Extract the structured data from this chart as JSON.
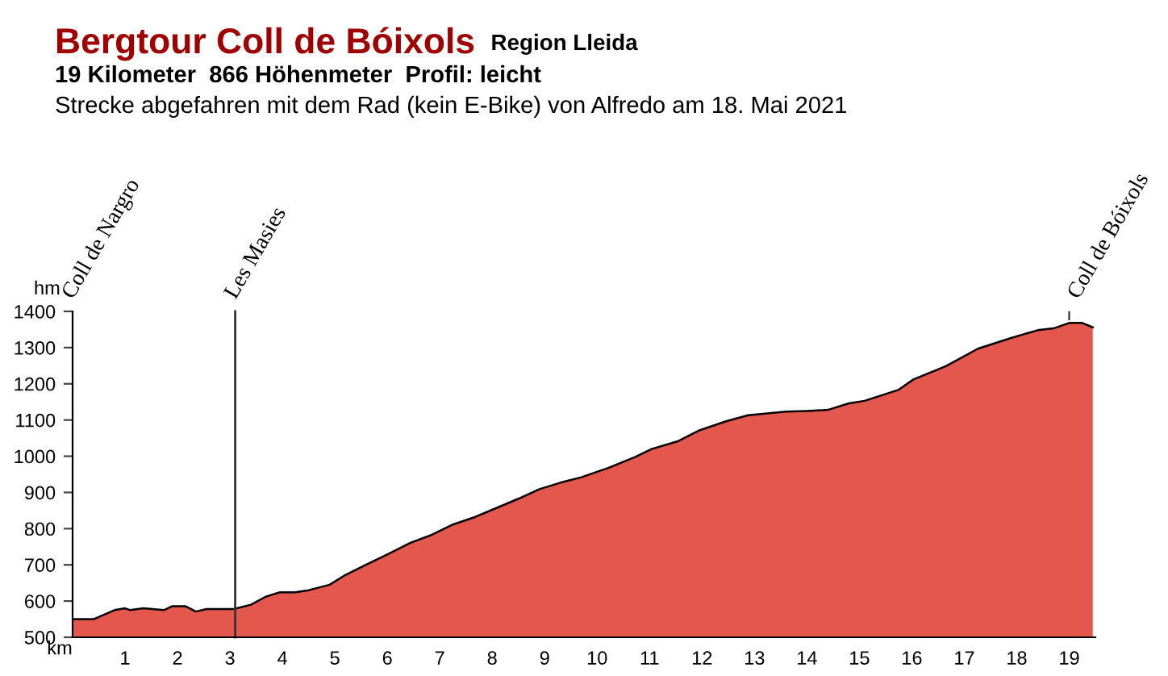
{
  "chart_data": {
    "type": "area",
    "title": "Bergtour Coll de Bóixols",
    "subtitle": "Region Lleida",
    "annotations": [
      "19 Kilometer  866 Höhenmeter  Profil: leicht",
      "Strecke abgefahren mit dem Rad (kein E-Bike) von Alfredo am 18. Mai 2021",
      "Coll de Nargro",
      {
        "text": "Coll de Bóixols",
        "x": 19.0,
        "y": 1368
      }
    ],
    "xlabel": "km",
    "ylabel": "hm",
    "series": [
      {
        "color": "#e4574c",
        "x": [
          0,
          0.4,
          0.8,
          1.0,
          1.1,
          1.35,
          1.74,
          1.9,
          2.15,
          2.35,
          2.55,
          3.07,
          3.4,
          3.68,
          3.94,
          4.24,
          4.5,
          4.9,
          5.2,
          5.6,
          6.03,
          6.44,
          6.85,
          7.26,
          7.67,
          8.08,
          8.49,
          8.9,
          9.3,
          9.7,
          10.22,
          10.73,
          11.04,
          11.55,
          11.96,
          12.47,
          12.88,
          13.6,
          14.0,
          14.4,
          14.8,
          15.1,
          15.74,
          16.03,
          16.65,
          17.26,
          17.88,
          18.4,
          18.7,
          19.0,
          19.25,
          19.45
        ],
        "values": [
          550,
          550,
          575,
          580,
          575,
          580,
          575,
          586,
          586,
          571,
          578,
          578,
          590,
          612,
          624,
          624,
          630,
          645,
          672,
          701,
          731,
          761,
          783,
          812,
          832,
          857,
          882,
          909,
          927,
          942,
          968,
          998,
          1020,
          1042,
          1072,
          1097,
          1113,
          1123,
          1125,
          1128,
          1146,
          1153,
          1183,
          1212,
          1249,
          1297,
          1326,
          1348,
          1353,
          1368,
          1368,
          1356
        ]
      }
    ],
    "ref_lines": [
      {
        "axis": "x",
        "value": 3.1,
        "label": "Les Masies"
      }
    ],
    "xlim": [
      0,
      19.5
    ],
    "ylim": [
      500,
      1400
    ],
    "xticks": [
      1,
      2,
      3,
      4,
      5,
      6,
      7,
      8,
      9,
      10,
      11,
      12,
      13,
      14,
      15,
      16,
      17,
      18,
      19
    ],
    "yticks": [
      500,
      600,
      700,
      800,
      900,
      1000,
      1100,
      1200,
      1300,
      1400
    ],
    "grid": false,
    "legend": false
  }
}
